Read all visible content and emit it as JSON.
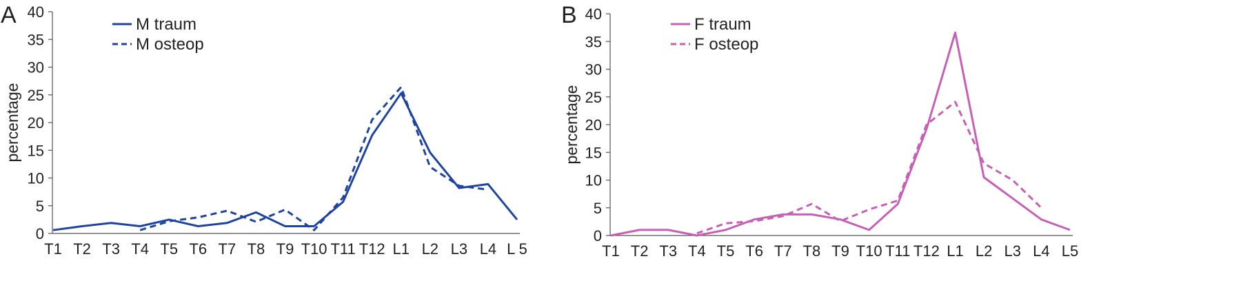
{
  "chart_data": [
    {
      "type": "line",
      "panel_label": "A",
      "categories": [
        "T1",
        "T2",
        "T3",
        "T4",
        "T5",
        "T6",
        "T7",
        "T8",
        "T9",
        "T10",
        "T11",
        "T12",
        "L1",
        "L2",
        "L3",
        "L4",
        "L 5"
      ],
      "ylabel": "percentage",
      "ylim": [
        0,
        40
      ],
      "yticks": [
        0,
        5,
        10,
        15,
        20,
        25,
        30,
        35,
        40
      ],
      "grid": false,
      "legend": "top-left",
      "series": [
        {
          "name": "M traum",
          "style": "solid",
          "color": "#1f43a0",
          "values": [
            0.6,
            1.3,
            1.9,
            1.3,
            2.5,
            1.3,
            1.9,
            3.8,
            1.3,
            1.3,
            5.7,
            17.7,
            25.3,
            14.6,
            8.2,
            8.9,
            2.5
          ]
        },
        {
          "name": "M osteop",
          "style": "dashed",
          "color": "#1f43a0",
          "values": [
            null,
            null,
            null,
            0.6,
            2.2,
            2.9,
            4.1,
            2.1,
            4.3,
            0.6,
            6.5,
            20.5,
            26.4,
            12.0,
            8.6,
            7.9,
            null
          ]
        }
      ]
    },
    {
      "type": "line",
      "panel_label": "B",
      "categories": [
        "T1",
        "T2",
        "T3",
        "T4",
        "T5",
        "T6",
        "T7",
        "T8",
        "T9",
        "T10",
        "T11",
        "T12",
        "L1",
        "L2",
        "L3",
        "L4",
        "L5"
      ],
      "ylabel": "percentage",
      "ylim": [
        0,
        40
      ],
      "yticks": [
        0,
        5,
        10,
        15,
        20,
        25,
        30,
        35,
        40
      ],
      "grid": false,
      "legend": "top-left",
      "series": [
        {
          "name": "F traum",
          "style": "solid",
          "color": "#c95fb5",
          "values": [
            0,
            1.0,
            1.0,
            0,
            1.0,
            2.9,
            3.8,
            3.8,
            2.9,
            1.0,
            5.7,
            19.2,
            36.6,
            10.5,
            6.7,
            2.9,
            1.0
          ]
        },
        {
          "name": "F osteop",
          "style": "dashed",
          "color": "#c95fb5",
          "values": [
            null,
            null,
            null,
            0.4,
            2.2,
            2.6,
            3.5,
            5.7,
            2.6,
            4.7,
            6.3,
            20.0,
            24.1,
            13.0,
            10.0,
            5.0,
            null
          ]
        }
      ]
    }
  ]
}
